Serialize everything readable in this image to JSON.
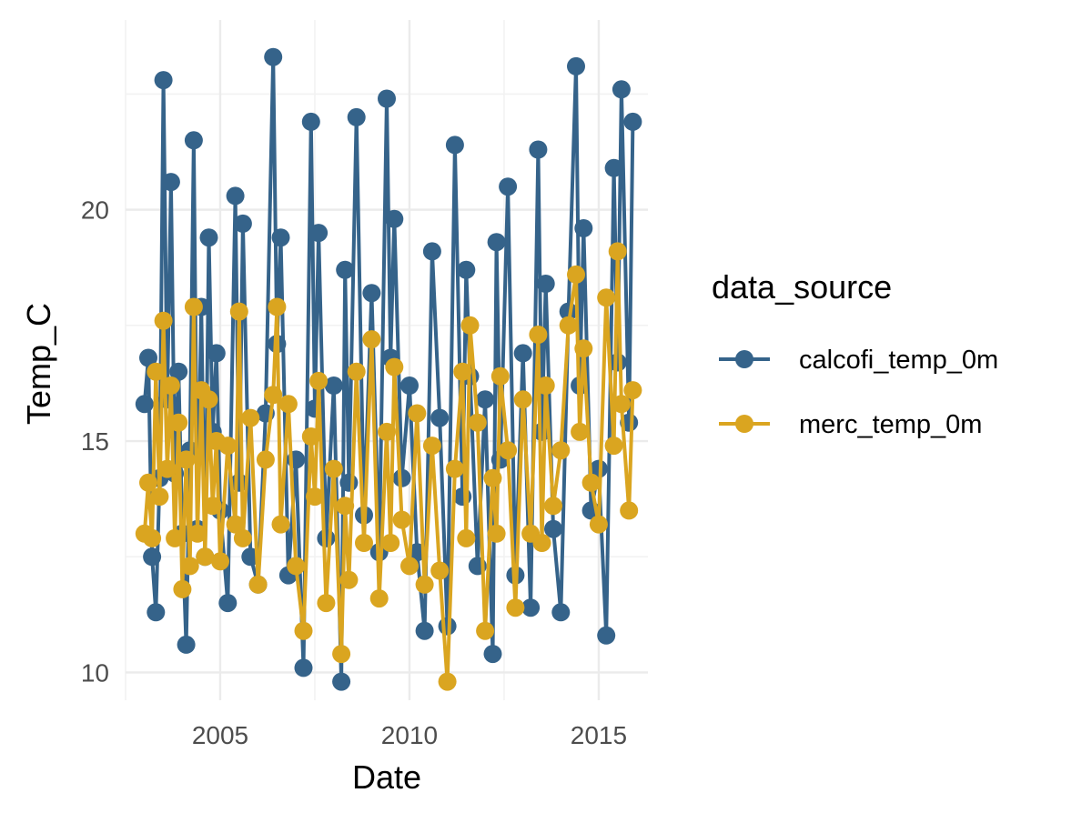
{
  "chart_data": {
    "type": "line",
    "xlabel": "Date",
    "ylabel": "Temp_C",
    "x_tick_labels": [
      "2005",
      "2010",
      "2015"
    ],
    "y_tick_labels": [
      "10",
      "15",
      "20"
    ],
    "xlim": [
      2002.5,
      2016.3
    ],
    "ylim": [
      9.4,
      24.1
    ],
    "x_ticks": [
      2005,
      2010,
      2015
    ],
    "y_ticks": [
      10,
      15,
      20
    ],
    "grid": true,
    "legend": {
      "title": "data_source",
      "position": "right"
    },
    "series": [
      {
        "name": "calcofi_temp_0m",
        "color": "#35638A",
        "markers": true,
        "x": [
          2003.0,
          2003.1,
          2003.2,
          2003.3,
          2003.4,
          2003.5,
          2003.6,
          2003.7,
          2003.8,
          2003.9,
          2004.0,
          2004.1,
          2004.2,
          2004.3,
          2004.4,
          2004.5,
          2004.6,
          2004.7,
          2004.8,
          2004.9,
          2005.0,
          2005.2,
          2005.4,
          2005.5,
          2005.6,
          2005.8,
          2006.0,
          2006.2,
          2006.4,
          2006.5,
          2006.6,
          2006.8,
          2007.0,
          2007.2,
          2007.4,
          2007.5,
          2007.6,
          2007.8,
          2008.0,
          2008.2,
          2008.3,
          2008.4,
          2008.6,
          2008.8,
          2009.0,
          2009.2,
          2009.4,
          2009.5,
          2009.6,
          2009.8,
          2010.0,
          2010.2,
          2010.4,
          2010.6,
          2010.8,
          2011.0,
          2011.2,
          2011.4,
          2011.5,
          2011.6,
          2011.8,
          2012.0,
          2012.2,
          2012.3,
          2012.4,
          2012.6,
          2012.8,
          2013.0,
          2013.2,
          2013.4,
          2013.5,
          2013.6,
          2013.8,
          2014.0,
          2014.2,
          2014.4,
          2014.5,
          2014.6,
          2014.8,
          2015.0,
          2015.2,
          2015.4,
          2015.5,
          2015.6,
          2015.8,
          2015.9
        ],
        "y": [
          15.8,
          16.8,
          12.5,
          11.3,
          14.2,
          22.8,
          15.9,
          20.6,
          14.3,
          16.5,
          13.0,
          10.6,
          14.8,
          21.5,
          13.1,
          17.9,
          12.5,
          19.4,
          15.2,
          16.9,
          13.5,
          11.5,
          20.3,
          14.1,
          19.7,
          12.5,
          11.9,
          15.6,
          23.3,
          17.1,
          19.4,
          12.1,
          14.6,
          10.1,
          21.9,
          15.7,
          19.5,
          12.9,
          16.2,
          9.8,
          18.7,
          14.1,
          22.0,
          13.4,
          18.2,
          12.6,
          22.4,
          16.8,
          19.8,
          14.2,
          16.2,
          12.6,
          10.9,
          19.1,
          15.5,
          11.0,
          21.4,
          13.8,
          18.7,
          16.4,
          12.3,
          15.9,
          10.4,
          19.3,
          14.6,
          20.5,
          12.1,
          16.9,
          11.4,
          21.3,
          15.2,
          18.4,
          13.1,
          11.3,
          17.8,
          23.1,
          16.2,
          19.6,
          13.5,
          14.4,
          10.8,
          20.9,
          16.7,
          22.6,
          15.4,
          21.9
        ]
      },
      {
        "name": "merc_temp_0m",
        "color": "#DAA520",
        "markers": true,
        "x": [
          2003.0,
          2003.1,
          2003.2,
          2003.3,
          2003.4,
          2003.5,
          2003.6,
          2003.7,
          2003.8,
          2003.9,
          2004.0,
          2004.1,
          2004.2,
          2004.3,
          2004.4,
          2004.5,
          2004.6,
          2004.7,
          2004.8,
          2004.9,
          2005.0,
          2005.2,
          2005.4,
          2005.5,
          2005.6,
          2005.8,
          2006.0,
          2006.2,
          2006.4,
          2006.5,
          2006.6,
          2006.8,
          2007.0,
          2007.2,
          2007.4,
          2007.5,
          2007.6,
          2007.8,
          2008.0,
          2008.2,
          2008.3,
          2008.4,
          2008.6,
          2008.8,
          2009.0,
          2009.2,
          2009.4,
          2009.5,
          2009.6,
          2009.8,
          2010.0,
          2010.2,
          2010.4,
          2010.6,
          2010.8,
          2011.0,
          2011.2,
          2011.4,
          2011.5,
          2011.6,
          2011.8,
          2012.0,
          2012.2,
          2012.3,
          2012.4,
          2012.6,
          2012.8,
          2013.0,
          2013.2,
          2013.4,
          2013.5,
          2013.6,
          2013.8,
          2014.0,
          2014.2,
          2014.4,
          2014.5,
          2014.6,
          2014.8,
          2015.0,
          2015.2,
          2015.4,
          2015.5,
          2015.6,
          2015.8,
          2015.9
        ],
        "y": [
          13.0,
          14.1,
          12.9,
          16.5,
          13.8,
          17.6,
          14.4,
          16.2,
          12.9,
          15.4,
          11.8,
          14.6,
          12.3,
          17.9,
          13.0,
          16.1,
          12.5,
          15.9,
          13.6,
          15.0,
          12.4,
          14.9,
          13.2,
          17.8,
          12.9,
          15.5,
          11.9,
          14.6,
          16.0,
          17.9,
          13.2,
          15.8,
          12.3,
          10.9,
          15.1,
          13.8,
          16.3,
          11.5,
          14.4,
          10.4,
          13.6,
          12.0,
          16.5,
          12.8,
          17.2,
          11.6,
          15.2,
          12.8,
          16.6,
          13.3,
          12.3,
          15.6,
          11.9,
          14.9,
          12.2,
          9.8,
          14.4,
          16.5,
          12.9,
          17.5,
          15.4,
          10.9,
          14.2,
          13.0,
          16.4,
          14.8,
          11.4,
          15.9,
          13.0,
          17.3,
          12.8,
          16.2,
          13.6,
          14.8,
          17.5,
          18.6,
          15.2,
          17.0,
          14.1,
          13.2,
          18.1,
          14.9,
          19.1,
          15.8,
          13.5,
          16.1
        ]
      }
    ]
  }
}
